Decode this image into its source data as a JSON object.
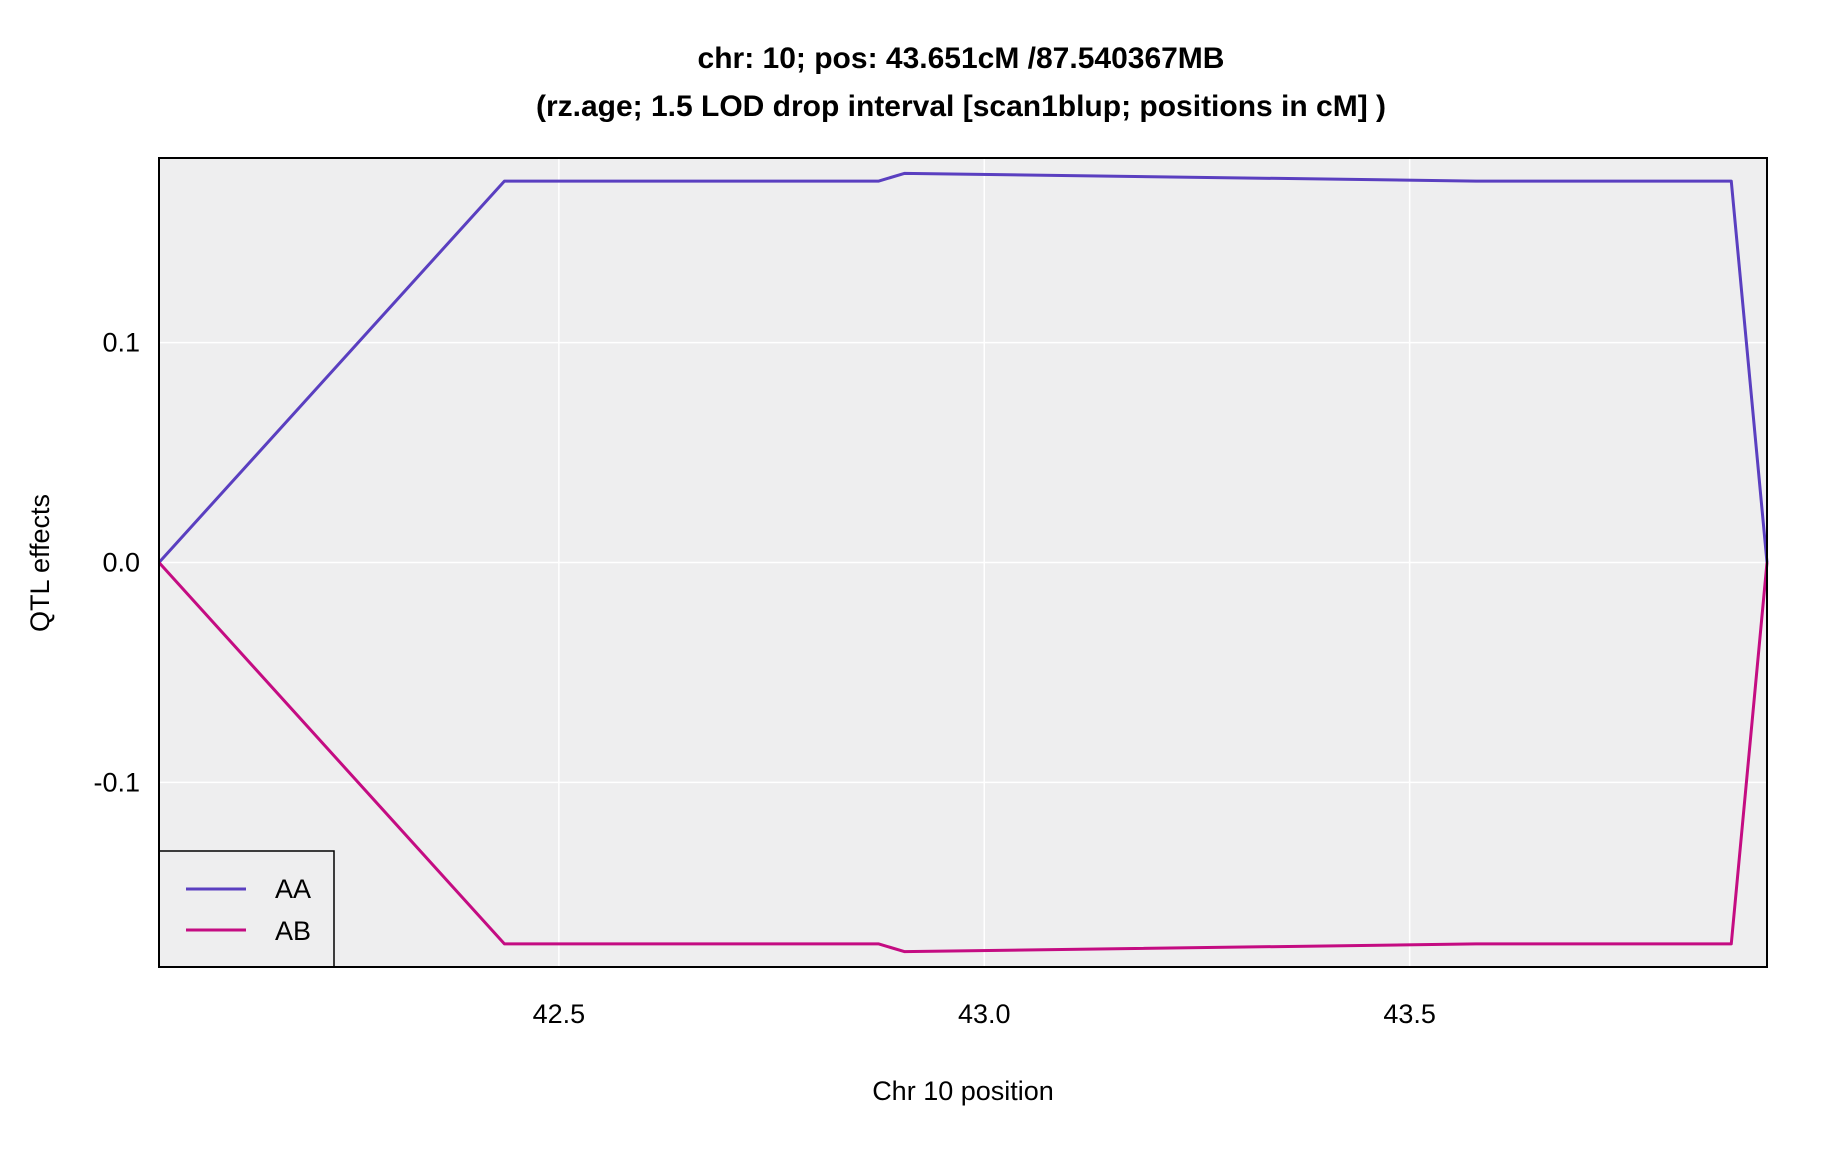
{
  "chart_data": {
    "type": "line",
    "title": "chr: 10; pos: 43.651cM /87.540367MB",
    "subtitle": "(rz.age; 1.5 LOD drop interval [scan1blup; positions in cM] )",
    "xlabel": "Chr 10 position",
    "ylabel": "QTL effects",
    "xlim": [
      42.03,
      43.92
    ],
    "ylim": [
      -0.184,
      0.184
    ],
    "x_ticks": [
      42.5,
      43.0,
      43.5
    ],
    "x_tick_labels": [
      "42.5",
      "43.0",
      "43.5"
    ],
    "y_ticks": [
      -0.1,
      0.0,
      0.1
    ],
    "y_tick_labels": [
      "-0.1",
      "0.0",
      "0.1"
    ],
    "grid": true,
    "legend_position": "bottom-left",
    "colors": {
      "plot_background": "#eeeeef",
      "grid": "#ffffff",
      "frame": "#000000"
    },
    "series": [
      {
        "name": "AA",
        "color": "#5a3fc0",
        "x": [
          42.03,
          42.436,
          42.876,
          42.906,
          43.578,
          43.67,
          43.878,
          43.92
        ],
        "y": [
          0.0,
          0.1735,
          0.1735,
          0.177,
          0.1735,
          0.1735,
          0.1735,
          0.0
        ]
      },
      {
        "name": "AB",
        "color": "#c40c82",
        "x": [
          42.03,
          42.436,
          42.876,
          42.906,
          43.578,
          43.67,
          43.878,
          43.92
        ],
        "y": [
          0.0,
          -0.1735,
          -0.1735,
          -0.177,
          -0.1735,
          -0.1735,
          -0.1735,
          0.0
        ]
      }
    ]
  }
}
